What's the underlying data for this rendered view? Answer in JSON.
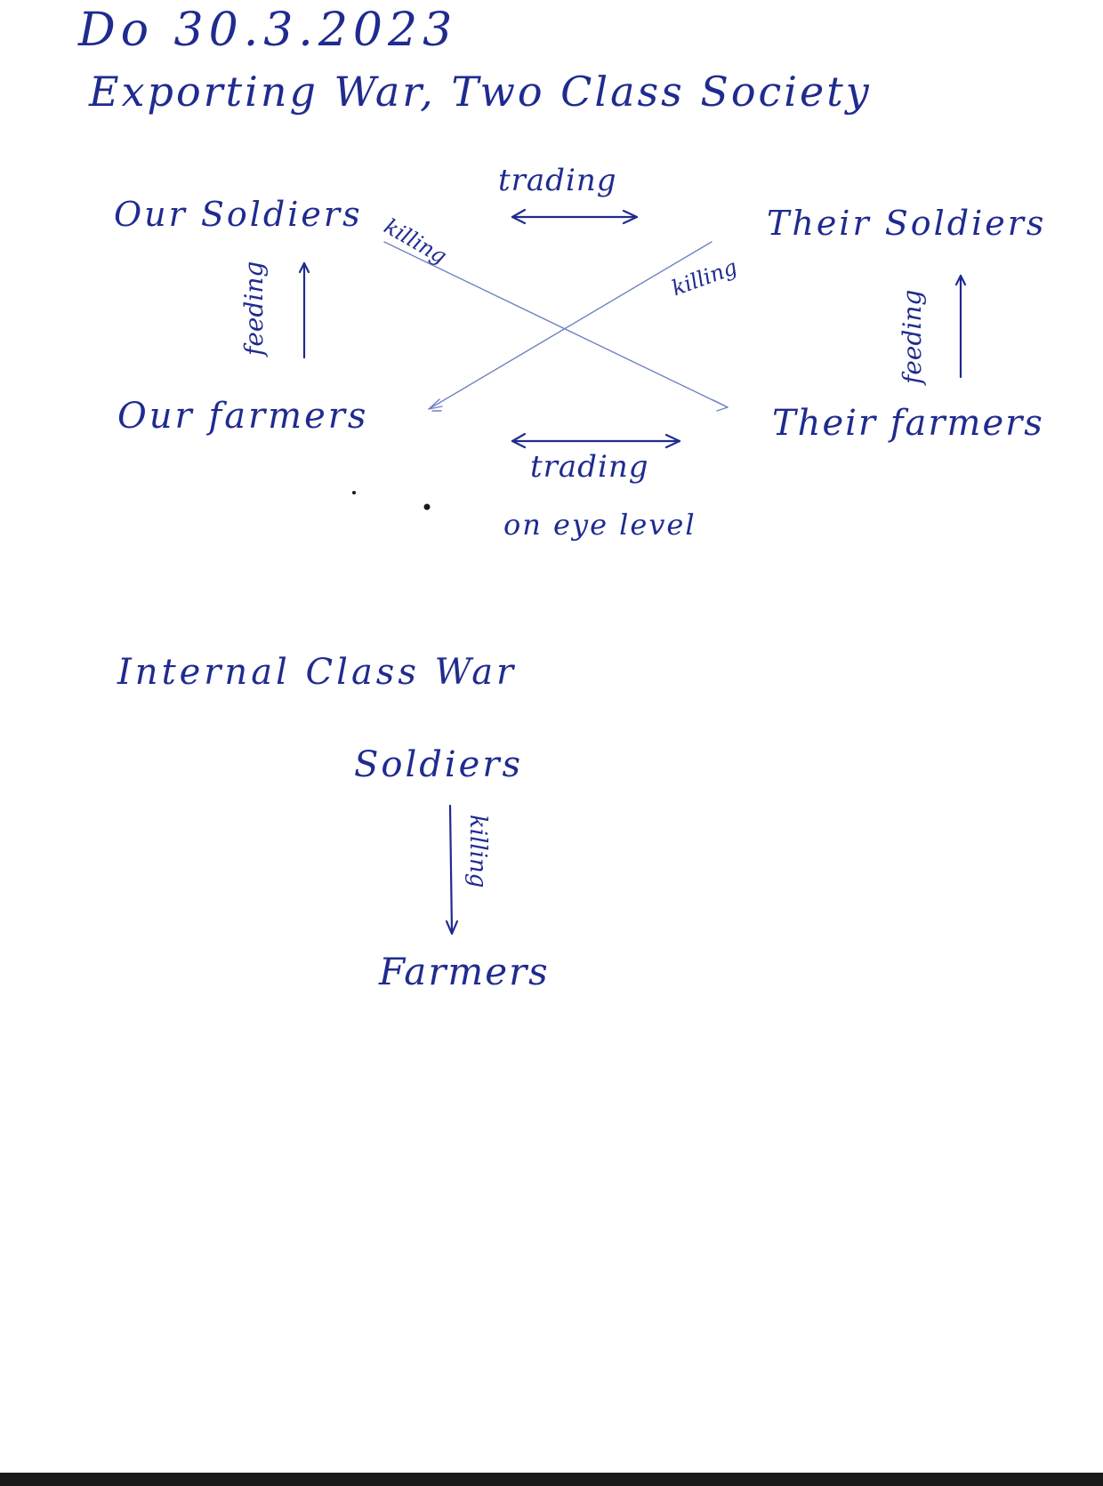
{
  "note": {
    "date": "Do 30.3.2023",
    "title": "Exporting War, Two Class Society"
  },
  "diagram_top": {
    "our_soldiers": "Our Soldiers",
    "their_soldiers": "Their Soldiers",
    "our_farmers": "Our farmers",
    "their_farmers": "Their farmers",
    "trading_soldiers": "trading",
    "trading_farmers": "trading",
    "trading_note": "on eye level",
    "killing_ours": "killing",
    "killing_theirs": "killing",
    "feeding_ours": "feeding",
    "feeding_theirs": "feeding"
  },
  "diagram_bottom": {
    "heading": "Internal Class War",
    "soldiers": "Soldiers",
    "killing": "killing",
    "farmers": "Farmers"
  },
  "colors": {
    "ink": "#1f2b8f",
    "paper": "#ffffff"
  }
}
